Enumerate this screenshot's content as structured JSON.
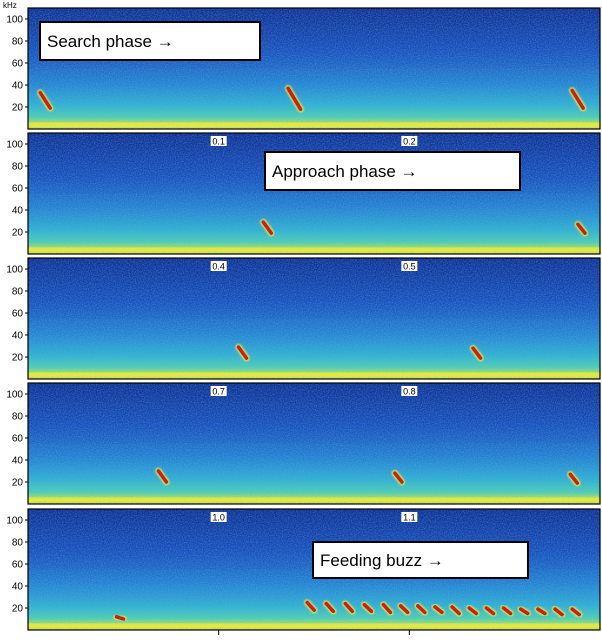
{
  "chart_data": {
    "type": "heatmap",
    "title": "",
    "xlabel": "",
    "ylabel": "kHz",
    "y_unit_label": "kHz",
    "ylim": [
      0,
      110
    ],
    "yticks": [
      20,
      40,
      60,
      80,
      100
    ],
    "grid": false,
    "colormap": [
      "#0c1f8c",
      "#1f4fc4",
      "#2f8fd8",
      "#3fc1c4",
      "#8fdc7a",
      "#f2e640",
      "#e8541a",
      "#b01c10"
    ],
    "panels": [
      {
        "x_range": [
          0.0,
          0.3
        ],
        "time_labels": [],
        "annotation": "Search phase →",
        "calls": [
          {
            "t": 0.008,
            "f_start": 33,
            "f_end": 19
          },
          {
            "t": 0.138,
            "f_start": 37,
            "f_end": 18
          },
          {
            "t": 0.287,
            "f_start": 35,
            "f_end": 19
          }
        ]
      },
      {
        "x_range": [
          0.0,
          0.3
        ],
        "time_labels": [
          {
            "value": 0.1,
            "text": "0.1"
          },
          {
            "value": 0.2,
            "text": "0.2"
          }
        ],
        "annotation": "Approach phase →",
        "calls": [
          {
            "t": 0.125,
            "f_start": 29,
            "f_end": 19
          },
          {
            "t": 0.29,
            "f_start": 27,
            "f_end": 19
          }
        ]
      },
      {
        "x_range": [
          0.3,
          0.6
        ],
        "time_labels": [
          {
            "value": 0.4,
            "text": "0.4"
          },
          {
            "value": 0.5,
            "text": "0.5"
          }
        ],
        "annotation": "",
        "calls": [
          {
            "t": 0.412,
            "f_start": 29,
            "f_end": 19
          },
          {
            "t": 0.535,
            "f_start": 28,
            "f_end": 19
          }
        ]
      },
      {
        "x_range": [
          0.6,
          0.9
        ],
        "time_labels": [
          {
            "value": 0.7,
            "text": "0.7"
          },
          {
            "value": 0.8,
            "text": "0.8"
          }
        ],
        "annotation": "",
        "calls": [
          {
            "t": 0.67,
            "f_start": 30,
            "f_end": 20
          },
          {
            "t": 0.794,
            "f_start": 28,
            "f_end": 20
          },
          {
            "t": 0.886,
            "f_start": 27,
            "f_end": 19
          }
        ]
      },
      {
        "x_range": [
          0.9,
          1.2
        ],
        "time_labels": [
          {
            "value": 1.0,
            "text": "1.0"
          },
          {
            "value": 1.1,
            "text": "1.1"
          }
        ],
        "annotation": "Feeding buzz →",
        "calls": [
          {
            "t": 0.948,
            "f_start": 12,
            "f_end": 10
          },
          {
            "t": 1.048,
            "f_start": 25,
            "f_end": 18
          },
          {
            "t": 1.058,
            "f_start": 24,
            "f_end": 17
          },
          {
            "t": 1.068,
            "f_start": 24,
            "f_end": 17
          },
          {
            "t": 1.078,
            "f_start": 23,
            "f_end": 17
          },
          {
            "t": 1.088,
            "f_start": 23,
            "f_end": 16
          },
          {
            "t": 1.097,
            "f_start": 22,
            "f_end": 16
          },
          {
            "t": 1.106,
            "f_start": 22,
            "f_end": 16
          },
          {
            "t": 1.115,
            "f_start": 21,
            "f_end": 16
          },
          {
            "t": 1.124,
            "f_start": 21,
            "f_end": 15
          },
          {
            "t": 1.133,
            "f_start": 20,
            "f_end": 15
          },
          {
            "t": 1.142,
            "f_start": 20,
            "f_end": 15
          },
          {
            "t": 1.151,
            "f_start": 20,
            "f_end": 15
          },
          {
            "t": 1.16,
            "f_start": 19,
            "f_end": 15
          },
          {
            "t": 1.169,
            "f_start": 19,
            "f_end": 15
          },
          {
            "t": 1.178,
            "f_start": 19,
            "f_end": 14
          },
          {
            "t": 1.187,
            "f_start": 19,
            "f_end": 14
          }
        ]
      }
    ]
  }
}
